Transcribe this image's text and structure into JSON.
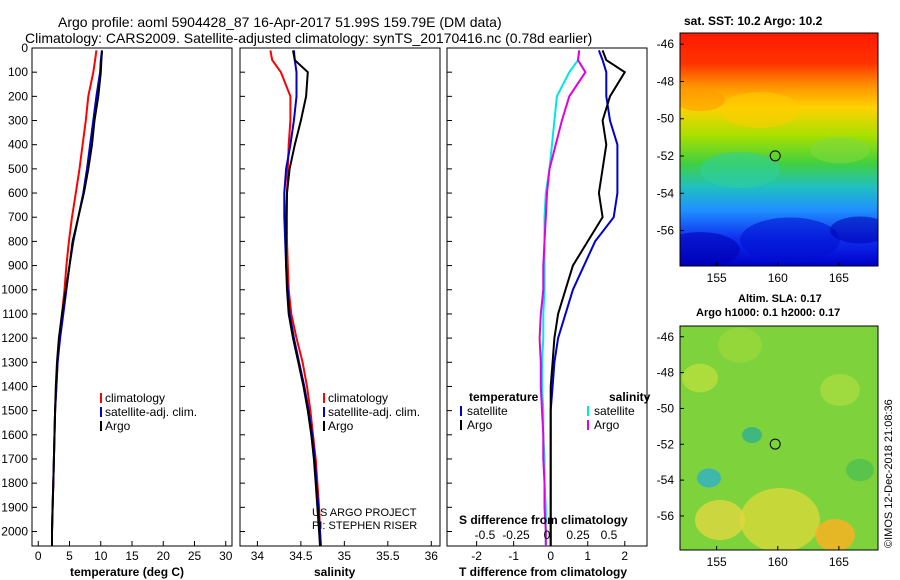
{
  "title_line1": "Argo profile: aoml 5904428_87 16-Apr-2017 51.99S 159.79E (DM data)",
  "title_line2": "Climatology: CARS2009. Satellite-adjusted climatology: synTS_20170416.nc (0.78d earlier)",
  "colors": {
    "climatology": "#ff0000",
    "satellite": "#0000cc",
    "argo": "#000000",
    "satellite_s": "#00e5e5",
    "argo_s": "#e000e0"
  },
  "credit": {
    "line1": "US ARGO PROJECT",
    "line2": "PI: STEPHEN RISER"
  },
  "watermark": "©IMOS 12-Dec-2018 21:08:36",
  "sst_map": {
    "title": "sat. SST: 10.2  Argo: 10.2",
    "xticks": [
      "155",
      "160",
      "165"
    ],
    "yticks": [
      "-46",
      "-48",
      "-50",
      "-52",
      "-54",
      "-56"
    ]
  },
  "sla_map": {
    "title1": "Altim. SLA: 0.17",
    "title2": "Argo h1000: 0.1  h2000: 0.17",
    "xticks": [
      "155",
      "160",
      "165"
    ],
    "yticks": [
      "-46",
      "-48",
      "-50",
      "-52",
      "-54",
      "-56"
    ]
  },
  "profile_location": {
    "lon": 159.79,
    "lat": -51.99
  },
  "chart_data": [
    {
      "type": "line",
      "panel": "temperature",
      "xlabel": "temperature (deg C)",
      "ylim": [
        2060,
        0
      ],
      "xlim": [
        -1,
        31
      ],
      "xticks": [
        0,
        5,
        10,
        15,
        20,
        25,
        30
      ],
      "yticks": [
        0,
        100,
        200,
        300,
        400,
        500,
        600,
        700,
        800,
        900,
        1000,
        1100,
        1200,
        1300,
        1400,
        1500,
        1600,
        1700,
        1800,
        1900,
        2000
      ],
      "legend": [
        "climatology",
        "satellite-adj. clim.",
        "Argo"
      ],
      "series": [
        {
          "name": "climatology",
          "color_key": "climatology",
          "depth": [
            10,
            50,
            100,
            200,
            300,
            400,
            500,
            600,
            700,
            800,
            900,
            1000,
            1100,
            1200,
            1300,
            1400,
            1500,
            1600,
            1700,
            1800,
            1900,
            2000,
            2060
          ],
          "values": [
            9.3,
            9.1,
            8.8,
            8.0,
            7.6,
            7.1,
            6.6,
            6.0,
            5.4,
            4.9,
            4.5,
            4.2,
            3.8,
            3.4,
            3.1,
            2.9,
            2.7,
            2.6,
            2.5,
            2.4,
            2.3,
            2.2,
            2.2
          ]
        },
        {
          "name": "satellite-adj. clim.",
          "color_key": "satellite",
          "depth": [
            10,
            50,
            100,
            200,
            300,
            400,
            500,
            600,
            700,
            800,
            900,
            1000,
            1100,
            1200,
            1300,
            1400,
            1500,
            1600,
            1700,
            1800,
            1900,
            2000,
            2060
          ],
          "values": [
            10.2,
            10.0,
            9.9,
            9.3,
            8.8,
            8.3,
            7.8,
            7.2,
            6.4,
            5.6,
            5.0,
            4.5,
            4.0,
            3.5,
            3.1,
            2.9,
            2.7,
            2.6,
            2.5,
            2.4,
            2.3,
            2.2,
            2.2
          ]
        },
        {
          "name": "Argo",
          "color_key": "argo",
          "depth": [
            10,
            50,
            100,
            200,
            300,
            400,
            500,
            600,
            700,
            800,
            900,
            1000,
            1100,
            1200,
            1300,
            1400,
            1500,
            1600,
            1700,
            1800,
            1900,
            2000,
            2060
          ],
          "values": [
            10.2,
            10.1,
            10.0,
            9.6,
            9.0,
            8.6,
            8.0,
            7.3,
            6.4,
            5.5,
            5.0,
            4.4,
            3.8,
            3.3,
            3.0,
            2.8,
            2.7,
            2.6,
            2.5,
            2.4,
            2.3,
            2.2,
            2.2
          ]
        }
      ]
    },
    {
      "type": "line",
      "panel": "salinity",
      "xlabel": "salinity",
      "ylim": [
        2060,
        0
      ],
      "xlim": [
        33.8,
        36.1
      ],
      "xticks": [
        34,
        34.5,
        35,
        35.5,
        36
      ],
      "legend": [
        "climatology",
        "satellite-adj. clim.",
        "Argo"
      ],
      "series": [
        {
          "name": "climatology",
          "color_key": "climatology",
          "depth": [
            10,
            50,
            100,
            200,
            300,
            400,
            500,
            600,
            700,
            800,
            900,
            1000,
            1100,
            1200,
            1300,
            1400,
            1500,
            1600,
            1700,
            1800,
            1900,
            2000,
            2060
          ],
          "values": [
            34.15,
            34.17,
            34.27,
            34.38,
            34.38,
            34.36,
            34.35,
            34.34,
            34.34,
            34.34,
            34.35,
            34.36,
            34.39,
            34.45,
            34.52,
            34.57,
            34.61,
            34.64,
            34.67,
            34.69,
            34.71,
            34.72,
            34.73
          ]
        },
        {
          "name": "satellite-adj. clim.",
          "color_key": "satellite",
          "depth": [
            10,
            50,
            100,
            200,
            300,
            400,
            500,
            600,
            700,
            800,
            900,
            1000,
            1100,
            1200,
            1300,
            1400,
            1500,
            1600,
            1700,
            1800,
            1900,
            2000,
            2060
          ],
          "values": [
            34.42,
            34.43,
            34.45,
            34.45,
            34.42,
            34.38,
            34.33,
            34.31,
            34.31,
            34.32,
            34.33,
            34.35,
            34.37,
            34.42,
            34.48,
            34.54,
            34.59,
            34.63,
            34.66,
            34.68,
            34.7,
            34.72,
            34.73
          ]
        },
        {
          "name": "Argo",
          "color_key": "argo",
          "depth": [
            10,
            50,
            100,
            200,
            300,
            400,
            500,
            600,
            700,
            800,
            900,
            1000,
            1100,
            1200,
            1300,
            1400,
            1500,
            1600,
            1700,
            1800,
            1900,
            2000,
            2060
          ],
          "values": [
            34.41,
            34.43,
            34.58,
            34.56,
            34.5,
            34.43,
            34.37,
            34.34,
            34.33,
            34.33,
            34.33,
            34.34,
            34.36,
            34.41,
            34.47,
            34.53,
            34.58,
            34.62,
            34.65,
            34.67,
            34.69,
            34.71,
            34.72
          ]
        }
      ]
    },
    {
      "type": "line",
      "panel": "difference",
      "xlabel": "T difference from climatology",
      "xlabel2": "S difference from climatology",
      "ylim": [
        2060,
        0
      ],
      "xlim": [
        -2.8,
        2.6
      ],
      "xticks": [
        -2,
        -1,
        0,
        1,
        2
      ],
      "xticks2": [
        "-0.5",
        "-0.25",
        "0",
        "0.25",
        "0.5"
      ],
      "legend_temperature": {
        "header": "temperature",
        "items": [
          "satellite",
          "Argo"
        ]
      },
      "legend_salinity": {
        "header": "salinity",
        "items": [
          "satellite",
          "Argo"
        ]
      },
      "series": [
        {
          "name": "temperature satellite",
          "color_key": "satellite",
          "depth": [
            10,
            50,
            100,
            200,
            300,
            400,
            500,
            600,
            700,
            800,
            900,
            1000,
            1100,
            1200,
            1300,
            1400,
            1500,
            1600,
            1700,
            1800,
            1900,
            2000,
            2060
          ],
          "values": [
            1.3,
            1.4,
            1.5,
            1.5,
            1.6,
            1.8,
            1.8,
            1.8,
            1.7,
            1.2,
            0.9,
            0.6,
            0.4,
            0.2,
            0.1,
            0.05,
            0.0,
            0.0,
            0.0,
            0.0,
            0.0,
            0.0,
            0.0
          ]
        },
        {
          "name": "temperature Argo",
          "color_key": "argo",
          "depth": [
            10,
            50,
            100,
            200,
            300,
            400,
            500,
            600,
            700,
            800,
            900,
            1000,
            1100,
            1200,
            1300,
            1400,
            1500,
            1600,
            1700,
            1800,
            1900,
            2000,
            2060
          ],
          "values": [
            1.4,
            1.5,
            2.0,
            1.6,
            1.4,
            1.5,
            1.4,
            1.3,
            1.4,
            1.0,
            0.6,
            0.4,
            0.2,
            0.1,
            0.05,
            0.0,
            0.0,
            0.0,
            0.0,
            0.0,
            0.0,
            0.0,
            0.0
          ]
        },
        {
          "name": "salinity satellite",
          "color_key": "satellite_s",
          "depth": [
            10,
            50,
            100,
            200,
            300,
            400,
            500,
            600,
            700,
            800,
            900,
            1000,
            1100,
            1200,
            1300,
            1400,
            1500,
            1600,
            1700,
            1800,
            1900,
            2000,
            2060
          ],
          "values": [
            0.26,
            0.25,
            0.18,
            0.08,
            0.06,
            0.04,
            0.02,
            -0.01,
            -0.02,
            -0.02,
            -0.02,
            -0.02,
            -0.03,
            -0.03,
            -0.04,
            -0.04,
            -0.03,
            -0.03,
            -0.02,
            -0.02,
            -0.01,
            -0.01,
            -0.01
          ]
        },
        {
          "name": "salinity Argo",
          "color_key": "argo_s",
          "depth": [
            10,
            50,
            100,
            200,
            300,
            400,
            500,
            600,
            700,
            800,
            900,
            1000,
            1100,
            1200,
            1300,
            1400,
            1500,
            1600,
            1700,
            1800,
            1900,
            2000,
            2060
          ],
          "values": [
            0.26,
            0.25,
            0.31,
            0.18,
            0.12,
            0.07,
            0.02,
            0.0,
            -0.01,
            -0.02,
            -0.03,
            -0.03,
            -0.05,
            -0.06,
            -0.05,
            -0.05,
            -0.04,
            -0.03,
            -0.03,
            -0.02,
            -0.02,
            -0.01,
            -0.01
          ]
        }
      ]
    }
  ]
}
